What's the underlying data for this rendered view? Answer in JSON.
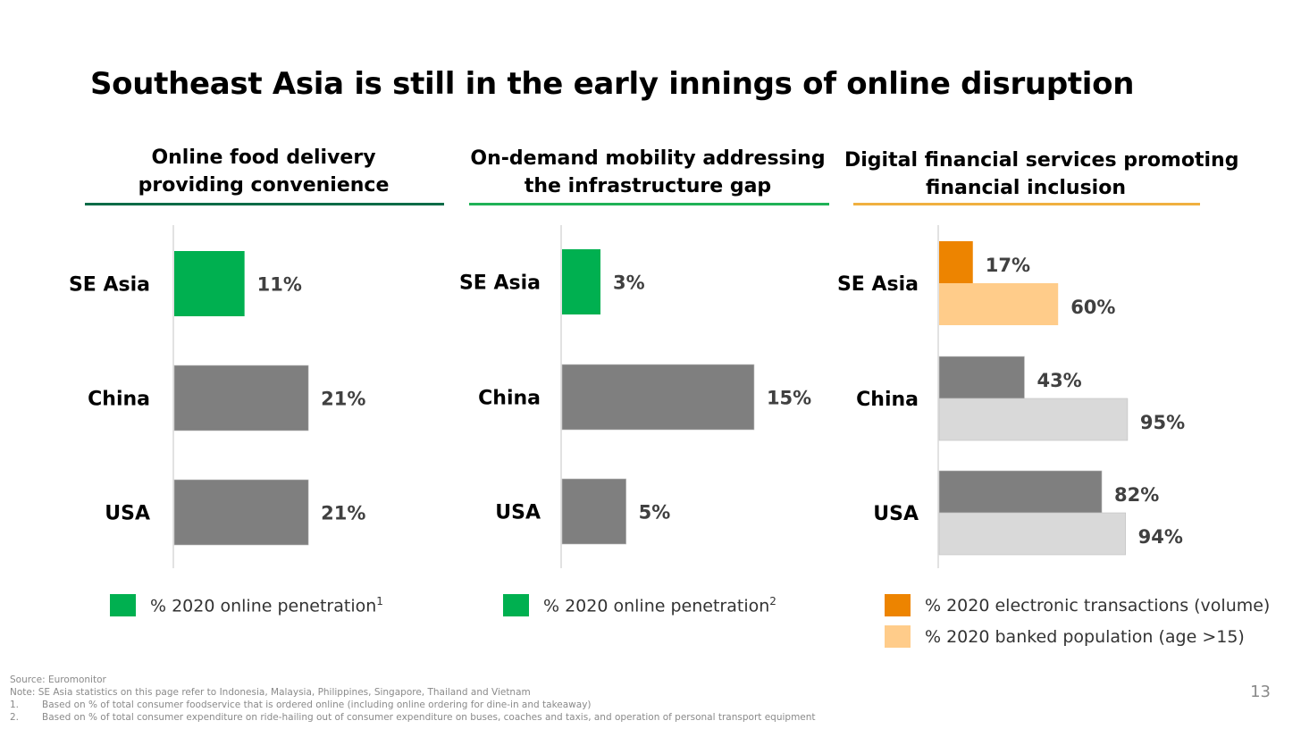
{
  "title": "Southeast Asia is still in the early innings of online disruption",
  "panels": [
    {
      "title_line1": "Online food delivery",
      "title_line2": "providing convenience",
      "rule_color": "#0b6b47",
      "legend": [
        {
          "label": "% 2020 online penetration",
          "sup": "1",
          "color": "#00b050"
        }
      ]
    },
    {
      "title_line1": "On-demand mobility addressing",
      "title_line2": "the infrastructure gap",
      "rule_color": "#1fb257",
      "legend": [
        {
          "label": "% 2020 online penetration",
          "sup": "2",
          "color": "#00b050"
        }
      ]
    },
    {
      "title_line1": "Digital financial services promoting",
      "title_line2": "financial inclusion",
      "rule_color": "#f0b040",
      "legend": [
        {
          "label": "% 2020 electronic transactions (volume)",
          "sup": "",
          "color": "#ed8400"
        },
        {
          "label": "% 2020 banked population (age >15)",
          "sup": "",
          "color": "#ffcc8a"
        }
      ]
    }
  ],
  "chart_data": [
    {
      "type": "bar",
      "orientation": "horizontal",
      "categories": [
        "SE Asia",
        "China",
        "USA"
      ],
      "series": [
        {
          "name": "% 2020 online penetration",
          "values": [
            11,
            21,
            21
          ],
          "unit": "%"
        }
      ],
      "highlight_color": "#00b050",
      "other_color": "#7f7f7f"
    },
    {
      "type": "bar",
      "orientation": "horizontal",
      "categories": [
        "SE Asia",
        "China",
        "USA"
      ],
      "series": [
        {
          "name": "% 2020 online penetration",
          "values": [
            3,
            15,
            5
          ],
          "unit": "%"
        }
      ],
      "highlight_color": "#00b050",
      "other_color": "#7f7f7f"
    },
    {
      "type": "bar",
      "orientation": "horizontal",
      "categories": [
        "SE Asia",
        "China",
        "USA"
      ],
      "series": [
        {
          "name": "% 2020 electronic transactions (volume)",
          "values": [
            17,
            43,
            82
          ],
          "unit": "%",
          "highlight_color": "#ed8400",
          "other_color": "#7f7f7f"
        },
        {
          "name": "% 2020 banked population (age >15)",
          "values": [
            60,
            95,
            94
          ],
          "unit": "%",
          "highlight_color": "#ffcc8a",
          "other_color": "#d9d9d9"
        }
      ]
    }
  ],
  "footnotes": {
    "source": "Source: Euromonitor",
    "note": "Note: SE Asia statistics on this page refer to Indonesia, Malaysia, Philippines, Singapore, Thailand and Vietnam",
    "items": [
      {
        "num": "1.",
        "text": "Based on % of total consumer foodservice that is ordered online (including online ordering for dine-in and takeaway)"
      },
      {
        "num": "2.",
        "text": "Based on % of total consumer expenditure on ride-hailing out of consumer expenditure on buses, coaches and taxis, and operation of personal transport equipment"
      }
    ]
  },
  "page_number": "13"
}
